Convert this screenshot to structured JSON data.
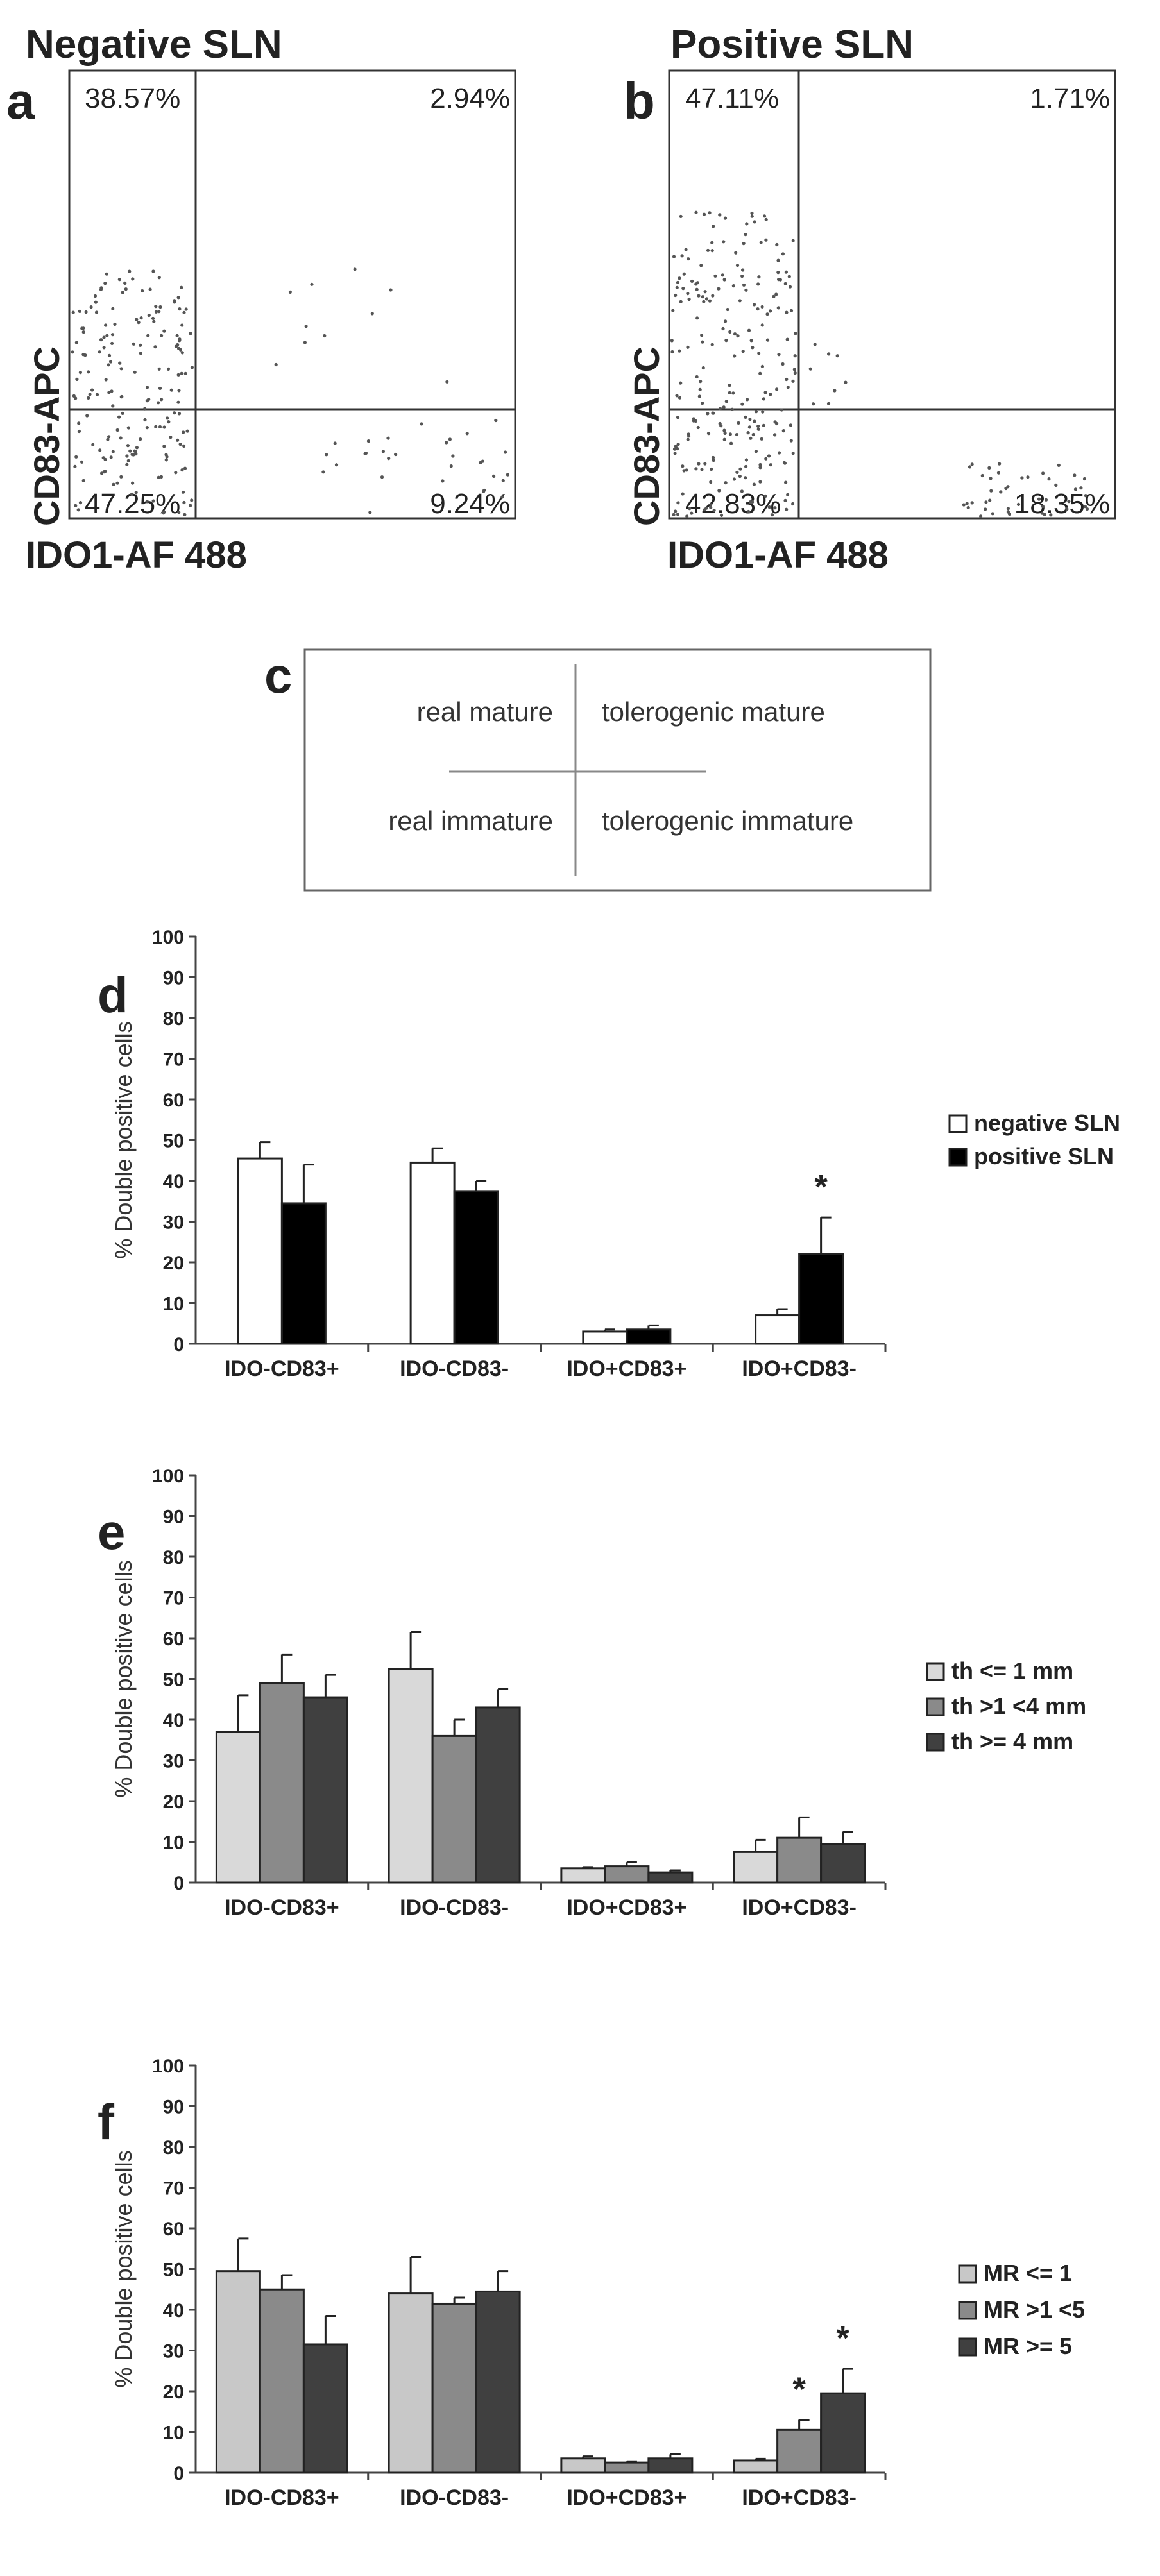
{
  "panels": {
    "a": {
      "letter": "a",
      "title": "Negative SLN",
      "xlabel": "IDO1-AF 488",
      "ylabel": "CD83-APC",
      "quadrants": {
        "top_left": "38.57%",
        "top_right": "2.94%",
        "bottom_left": "47.25%",
        "bottom_right": "9.24%"
      }
    },
    "b": {
      "letter": "b",
      "title": "Positive SLN",
      "xlabel": "IDO1-AF 488",
      "ylabel": "CD83-APC",
      "quadrants": {
        "top_left": "47.11%",
        "top_right": "1.71%",
        "bottom_left": "42.83%",
        "bottom_right": "18.35%"
      }
    },
    "c": {
      "letter": "c",
      "top_left": "real mature",
      "top_right": "tolerogenic mature",
      "bottom_left": "real immature",
      "bottom_right": "tolerogenic immature"
    }
  },
  "chart_data": [
    {
      "panel": "d",
      "type": "bar",
      "ylabel": "% Double positive cells",
      "ylim": [
        0,
        100
      ],
      "yticks": [
        "0",
        "10",
        "20",
        "30",
        "40",
        "50",
        "60",
        "70",
        "80",
        "90",
        "100"
      ],
      "categories": [
        "IDO-CD83+",
        "IDO-CD83-",
        "IDO+CD83+",
        "IDO+CD83-"
      ],
      "series": [
        {
          "name": "negative SLN",
          "color": "#ffffff",
          "values": [
            45.5,
            44.5,
            3.0,
            7.0
          ],
          "errors": [
            4,
            3.5,
            0.5,
            1.5
          ]
        },
        {
          "name": "positive SLN",
          "color": "#000000",
          "values": [
            34.5,
            37.5,
            3.5,
            22.0
          ],
          "errors": [
            9.5,
            2.5,
            1.0,
            9.0
          ]
        }
      ],
      "annotations": [
        {
          "category": 3,
          "series": 1,
          "text": "*"
        }
      ]
    },
    {
      "panel": "e",
      "type": "bar",
      "ylabel": "% Double positive cells",
      "ylim": [
        0,
        100
      ],
      "yticks": [
        "0",
        "10",
        "20",
        "30",
        "40",
        "50",
        "60",
        "70",
        "80",
        "90",
        "100"
      ],
      "categories": [
        "IDO-CD83+",
        "IDO-CD83-",
        "IDO+CD83+",
        "IDO+CD83-"
      ],
      "series": [
        {
          "name": "th <= 1 mm",
          "color": "#d9d9d9",
          "values": [
            37.0,
            52.5,
            3.5,
            7.5
          ],
          "errors": [
            9,
            9,
            0.3,
            3
          ]
        },
        {
          "name": "th >1 <4 mm",
          "color": "#8a8a8a",
          "values": [
            49.0,
            36.0,
            4.0,
            11.0
          ],
          "errors": [
            7,
            4,
            1,
            5
          ]
        },
        {
          "name": "th >= 4 mm",
          "color": "#404040",
          "values": [
            45.5,
            43.0,
            2.5,
            9.5
          ],
          "errors": [
            5.5,
            4.5,
            0.5,
            3
          ]
        }
      ],
      "annotations": []
    },
    {
      "panel": "f",
      "type": "bar",
      "ylabel": "% Double positive cells",
      "ylim": [
        0,
        100
      ],
      "yticks": [
        "0",
        "10",
        "20",
        "30",
        "40",
        "50",
        "60",
        "70",
        "80",
        "90",
        "100"
      ],
      "categories": [
        "IDO-CD83+",
        "IDO-CD83-",
        "IDO+CD83+",
        "IDO+CD83-"
      ],
      "series": [
        {
          "name": "MR <= 1",
          "color": "#c8c8c8",
          "values": [
            49.5,
            44.0,
            3.5,
            3.0
          ],
          "errors": [
            8,
            9,
            0.5,
            0.4
          ]
        },
        {
          "name": "MR >1 <5",
          "color": "#8a8a8a",
          "values": [
            45.0,
            41.5,
            2.5,
            10.5
          ],
          "errors": [
            3.5,
            1.5,
            0.3,
            2.5
          ]
        },
        {
          "name": "MR >= 5",
          "color": "#404040",
          "values": [
            31.5,
            44.5,
            3.5,
            19.5
          ],
          "errors": [
            7,
            5,
            1,
            6
          ]
        }
      ],
      "annotations": [
        {
          "category": 3,
          "series": 1,
          "text": "*"
        },
        {
          "category": 3,
          "series": 2,
          "text": "*"
        }
      ]
    }
  ]
}
